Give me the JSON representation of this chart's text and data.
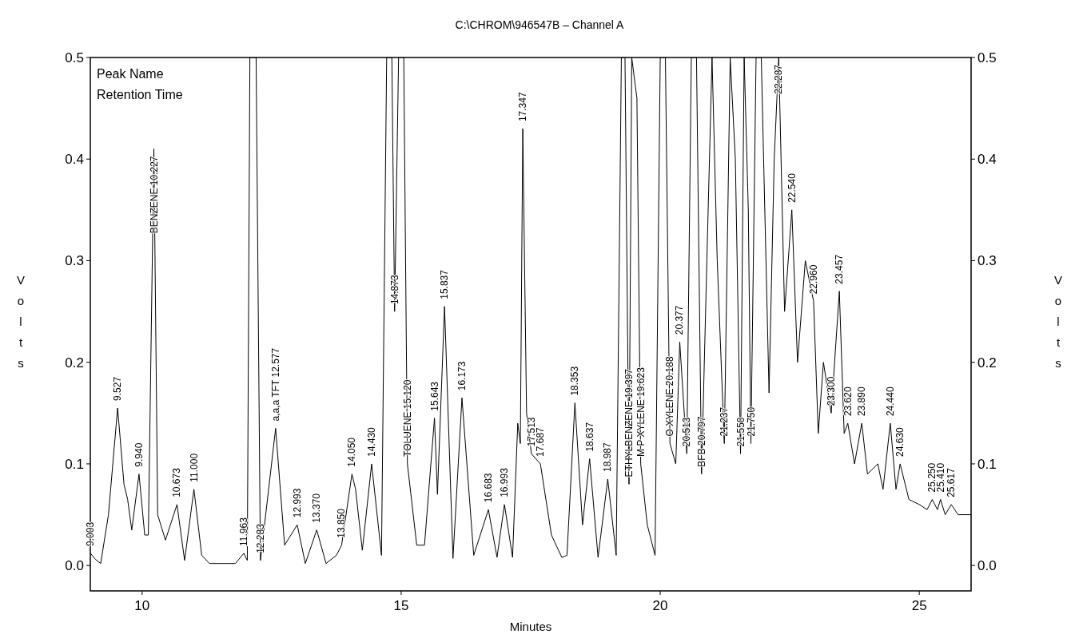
{
  "chart_data": {
    "type": "line",
    "title": "C:\\CHROM\\946547B – Channel A",
    "xlabel": "Minutes",
    "ylabel": "Volts",
    "y2label": "Volts",
    "xlim": [
      9,
      26
    ],
    "xticks": [
      10,
      15,
      20,
      25
    ],
    "ylim": [
      -0.025,
      0.5
    ],
    "yticks": [
      {
        "value": 0,
        "label": "0.0"
      },
      {
        "value": 0.1,
        "label": "0.1"
      },
      {
        "value": 0.2,
        "label": "0.2"
      },
      {
        "value": 0.3,
        "label": "0.3"
      },
      {
        "value": 0.4,
        "label": "0.4"
      },
      {
        "value": 0.5,
        "label": "0.5"
      }
    ],
    "y2lim": [
      -0.025,
      0.5
    ],
    "y2ticks": [
      {
        "value": 0,
        "label": "0.0"
      },
      {
        "value": 0.1,
        "label": "0.1"
      },
      {
        "value": 0.2,
        "label": "0.2"
      },
      {
        "value": 0.3,
        "label": "0.3"
      },
      {
        "value": 0.4,
        "label": "0.4"
      },
      {
        "value": 0.5,
        "label": "0.5"
      }
    ],
    "grid": false,
    "marker": "none",
    "line_style": "solid",
    "series": [
      {
        "color": "#000000",
        "x": [
          9.003,
          9.1,
          9.2,
          9.35,
          9.527,
          9.65,
          9.72,
          9.8,
          9.94,
          10.05,
          10.12,
          10.227,
          10.3,
          10.45,
          10.673,
          10.82,
          11.0,
          11.15,
          11.3,
          11.8,
          11.963,
          12.03,
          12.08,
          12.2,
          12.283,
          12.577,
          12.75,
          12.993,
          13.15,
          13.37,
          13.55,
          13.75,
          13.85,
          14.05,
          14.12,
          14.25,
          14.43,
          14.62,
          14.72,
          14.82,
          14.873,
          14.95,
          15.05,
          15.12,
          15.3,
          15.45,
          15.643,
          15.7,
          15.837,
          16.0,
          16.173,
          16.4,
          16.683,
          16.85,
          16.993,
          17.15,
          17.25,
          17.3,
          17.347,
          17.42,
          17.513,
          17.687,
          17.9,
          18.1,
          18.2,
          18.353,
          18.5,
          18.637,
          18.8,
          18.987,
          19.15,
          19.25,
          19.32,
          19.397,
          19.45,
          19.55,
          19.623,
          19.75,
          19.9,
          20.0,
          20.1,
          20.188,
          20.3,
          20.377,
          20.513,
          20.6,
          20.7,
          20.797,
          20.9,
          21.0,
          21.1,
          21.237,
          21.35,
          21.45,
          21.55,
          21.62,
          21.7,
          21.75,
          21.85,
          21.95,
          22.1,
          22.2,
          22.287,
          22.4,
          22.54,
          22.65,
          22.8,
          22.96,
          23.05,
          23.15,
          23.3,
          23.457,
          23.55,
          23.62,
          23.75,
          23.89,
          24.0,
          24.2,
          24.3,
          24.44,
          24.55,
          24.63,
          24.8,
          25.0,
          25.15,
          25.25,
          25.35,
          25.41,
          25.5,
          25.617,
          25.75,
          26.0
        ],
        "values": [
          0.012,
          0.006,
          0.002,
          0.05,
          0.155,
          0.08,
          0.065,
          0.035,
          0.09,
          0.03,
          0.03,
          0.41,
          0.05,
          0.025,
          0.06,
          0.005,
          0.075,
          0.01,
          0.002,
          0.002,
          0.012,
          0.005,
          0.5,
          0.5,
          0.005,
          0.135,
          0.02,
          0.04,
          0.002,
          0.035,
          0.002,
          0.01,
          0.02,
          0.09,
          0.075,
          0.015,
          0.1,
          0.01,
          0.5,
          0.5,
          0.25,
          0.5,
          0.5,
          0.1,
          0.02,
          0.02,
          0.145,
          0.07,
          0.255,
          0.007,
          0.165,
          0.01,
          0.055,
          0.008,
          0.06,
          0.008,
          0.14,
          0.12,
          0.43,
          0.15,
          0.11,
          0.1,
          0.03,
          0.008,
          0.01,
          0.16,
          0.04,
          0.105,
          0.008,
          0.085,
          0.01,
          0.5,
          0.5,
          0.08,
          0.5,
          0.46,
          0.1,
          0.04,
          0.01,
          0.5,
          0.5,
          0.12,
          0.1,
          0.22,
          0.11,
          0.5,
          0.5,
          0.09,
          0.3,
          0.5,
          0.3,
          0.12,
          0.5,
          0.4,
          0.11,
          0.5,
          0.35,
          0.12,
          0.5,
          0.5,
          0.17,
          0.4,
          0.5,
          0.25,
          0.35,
          0.2,
          0.3,
          0.26,
          0.13,
          0.2,
          0.15,
          0.27,
          0.13,
          0.14,
          0.1,
          0.14,
          0.09,
          0.1,
          0.075,
          0.14,
          0.075,
          0.1,
          0.065,
          0.06,
          0.055,
          0.065,
          0.055,
          0.065,
          0.05,
          0.06,
          0.05,
          0.05
        ]
      }
    ],
    "annotations": [
      "Peak Name",
      "Retention Time",
      {
        "text": "9.003",
        "x": 9.003,
        "y": 0.012
      },
      {
        "text": "9.527",
        "x": 9.527,
        "y": 0.155
      },
      {
        "text": "9.940",
        "x": 9.94,
        "y": 0.09
      },
      {
        "text": "BENZENE 10.227",
        "x": 10.227,
        "y": 0.41
      },
      {
        "text": "10.673",
        "x": 10.673,
        "y": 0.06
      },
      {
        "text": "11.000",
        "x": 11.0,
        "y": 0.075
      },
      {
        "text": "11.963",
        "x": 11.963,
        "y": 0.012
      },
      {
        "text": "12.283",
        "x": 12.283,
        "y": 0.005
      },
      {
        "text": "a,a,a TFT 12.577",
        "x": 12.577,
        "y": 0.135
      },
      {
        "text": "12.993",
        "x": 12.993,
        "y": 0.04
      },
      {
        "text": "13.370",
        "x": 13.37,
        "y": 0.035
      },
      {
        "text": "13.850",
        "x": 13.85,
        "y": 0.02
      },
      {
        "text": "14.050",
        "x": 14.05,
        "y": 0.09
      },
      {
        "text": "14.430",
        "x": 14.43,
        "y": 0.1
      },
      {
        "text": "14.873",
        "x": 14.873,
        "y": 0.25
      },
      {
        "text": "TOLUENE 15.120",
        "x": 15.12,
        "y": 0.1
      },
      {
        "text": "15.643",
        "x": 15.643,
        "y": 0.145
      },
      {
        "text": "15.837",
        "x": 15.837,
        "y": 0.255
      },
      {
        "text": "16.173",
        "x": 16.173,
        "y": 0.165
      },
      {
        "text": "16.683",
        "x": 16.683,
        "y": 0.055
      },
      {
        "text": "16.993",
        "x": 16.993,
        "y": 0.06
      },
      {
        "text": "17.347",
        "x": 17.347,
        "y": 0.43
      },
      {
        "text": "17.513",
        "x": 17.513,
        "y": 0.11
      },
      {
        "text": "17.687",
        "x": 17.687,
        "y": 0.1
      },
      {
        "text": "18.353",
        "x": 18.353,
        "y": 0.16
      },
      {
        "text": "18.637",
        "x": 18.637,
        "y": 0.105
      },
      {
        "text": "18.987",
        "x": 18.987,
        "y": 0.085
      },
      {
        "text": "ETHYLBENZENE 19.397",
        "x": 19.397,
        "y": 0.08
      },
      {
        "text": "M P XYLENE 19.623",
        "x": 19.623,
        "y": 0.1
      },
      {
        "text": "O XYLENE 20.188",
        "x": 20.188,
        "y": 0.12
      },
      {
        "text": "20.377",
        "x": 20.377,
        "y": 0.22
      },
      {
        "text": "20.513",
        "x": 20.513,
        "y": 0.11
      },
      {
        "text": "BFB 20.797",
        "x": 20.797,
        "y": 0.09
      },
      {
        "text": "21.237",
        "x": 21.237,
        "y": 0.12
      },
      {
        "text": "21.550",
        "x": 21.55,
        "y": 0.11
      },
      {
        "text": "21.750",
        "x": 21.75,
        "y": 0.12
      },
      {
        "text": "22.287",
        "x": 22.287,
        "y": 0.5
      },
      {
        "text": "22.540",
        "x": 22.54,
        "y": 0.35
      },
      {
        "text": "22.960",
        "x": 22.96,
        "y": 0.26
      },
      {
        "text": "23.300",
        "x": 23.3,
        "y": 0.15
      },
      {
        "text": "23.457",
        "x": 23.457,
        "y": 0.27
      },
      {
        "text": "23.620",
        "x": 23.62,
        "y": 0.14
      },
      {
        "text": "23.890",
        "x": 23.89,
        "y": 0.14
      },
      {
        "text": "24.440",
        "x": 24.44,
        "y": 0.14
      },
      {
        "text": "24.630",
        "x": 24.63,
        "y": 0.1
      },
      {
        "text": "25.250",
        "x": 25.25,
        "y": 0.065
      },
      {
        "text": "25.410",
        "x": 25.41,
        "y": 0.065
      },
      {
        "text": "25.617",
        "x": 25.617,
        "y": 0.06
      }
    ]
  }
}
